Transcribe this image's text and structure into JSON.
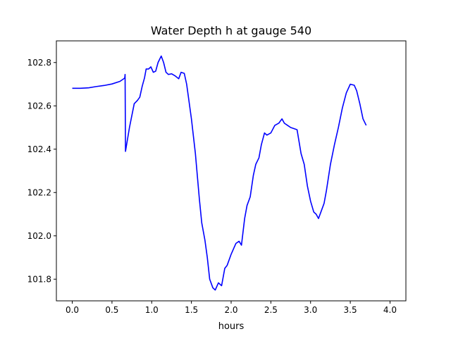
{
  "chart_data": {
    "type": "line",
    "title": "Water Depth h at gauge 540",
    "xlabel": "hours",
    "ylabel": "",
    "xlim": [
      -0.2,
      4.2
    ],
    "ylim": [
      101.7,
      102.9
    ],
    "x_ticks": [
      0.0,
      0.5,
      1.0,
      1.5,
      2.0,
      2.5,
      3.0,
      3.5,
      4.0
    ],
    "x_tick_labels": [
      "0.0",
      "0.5",
      "1.0",
      "1.5",
      "2.0",
      "2.5",
      "3.0",
      "3.5",
      "4.0"
    ],
    "y_ticks": [
      101.8,
      102.0,
      102.2,
      102.4,
      102.6,
      102.8
    ],
    "y_tick_labels": [
      "101.8",
      "102.0",
      "102.2",
      "102.4",
      "102.6",
      "102.8"
    ],
    "grid": false,
    "series": [
      {
        "color": "#0000ff",
        "points": [
          [
            0.0,
            102.681
          ],
          [
            0.1,
            102.681
          ],
          [
            0.2,
            102.683
          ],
          [
            0.3,
            102.689
          ],
          [
            0.4,
            102.694
          ],
          [
            0.5,
            102.701
          ],
          [
            0.6,
            102.713
          ],
          [
            0.66,
            102.728
          ],
          [
            0.665,
            102.745
          ],
          [
            0.67,
            102.39
          ],
          [
            0.72,
            102.5
          ],
          [
            0.78,
            102.61
          ],
          [
            0.82,
            102.625
          ],
          [
            0.85,
            102.64
          ],
          [
            0.88,
            102.69
          ],
          [
            0.91,
            102.73
          ],
          [
            0.93,
            102.77
          ],
          [
            0.96,
            102.77
          ],
          [
            0.99,
            102.78
          ],
          [
            1.02,
            102.755
          ],
          [
            1.05,
            102.76
          ],
          [
            1.08,
            102.8
          ],
          [
            1.12,
            102.83
          ],
          [
            1.15,
            102.8
          ],
          [
            1.18,
            102.755
          ],
          [
            1.21,
            102.745
          ],
          [
            1.25,
            102.748
          ],
          [
            1.3,
            102.737
          ],
          [
            1.34,
            102.725
          ],
          [
            1.37,
            102.755
          ],
          [
            1.41,
            102.75
          ],
          [
            1.44,
            102.7
          ],
          [
            1.5,
            102.54
          ],
          [
            1.55,
            102.38
          ],
          [
            1.6,
            102.17
          ],
          [
            1.63,
            102.06
          ],
          [
            1.67,
            101.98
          ],
          [
            1.7,
            101.9
          ],
          [
            1.73,
            101.8
          ],
          [
            1.77,
            101.76
          ],
          [
            1.8,
            101.75
          ],
          [
            1.84,
            101.783
          ],
          [
            1.88,
            101.77
          ],
          [
            1.92,
            101.85
          ],
          [
            1.95,
            101.864
          ],
          [
            2.0,
            101.915
          ],
          [
            2.03,
            101.94
          ],
          [
            2.06,
            101.965
          ],
          [
            2.1,
            101.975
          ],
          [
            2.13,
            101.957
          ],
          [
            2.17,
            102.08
          ],
          [
            2.2,
            102.14
          ],
          [
            2.24,
            102.18
          ],
          [
            2.28,
            102.28
          ],
          [
            2.31,
            102.33
          ],
          [
            2.35,
            102.36
          ],
          [
            2.38,
            102.42
          ],
          [
            2.42,
            102.475
          ],
          [
            2.45,
            102.465
          ],
          [
            2.5,
            102.475
          ],
          [
            2.55,
            102.51
          ],
          [
            2.6,
            102.52
          ],
          [
            2.64,
            102.54
          ],
          [
            2.67,
            102.52
          ],
          [
            2.71,
            102.51
          ],
          [
            2.75,
            102.5
          ],
          [
            2.79,
            102.495
          ],
          [
            2.83,
            102.49
          ],
          [
            2.88,
            102.38
          ],
          [
            2.92,
            102.33
          ],
          [
            2.96,
            102.23
          ],
          [
            3.0,
            102.16
          ],
          [
            3.04,
            102.11
          ],
          [
            3.07,
            102.1
          ],
          [
            3.1,
            102.08
          ],
          [
            3.13,
            102.11
          ],
          [
            3.17,
            102.15
          ],
          [
            3.2,
            102.21
          ],
          [
            3.25,
            102.33
          ],
          [
            3.3,
            102.42
          ],
          [
            3.35,
            102.5
          ],
          [
            3.4,
            102.59
          ],
          [
            3.45,
            102.66
          ],
          [
            3.5,
            102.7
          ],
          [
            3.55,
            102.695
          ],
          [
            3.58,
            102.67
          ],
          [
            3.62,
            102.61
          ],
          [
            3.66,
            102.54
          ],
          [
            3.7,
            102.51
          ]
        ]
      }
    ]
  }
}
